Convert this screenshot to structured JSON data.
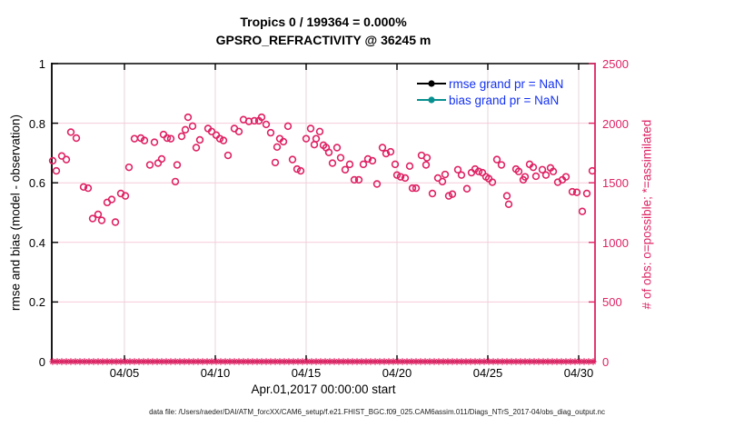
{
  "chart_data": {
    "type": "scatter",
    "title_line1": "Tropics 0 / 199364 = 0.000%",
    "title_line2": "GPSRO_REFRACTIVITY @ 36245 m",
    "xlabel": "Apr.01,2017 00:00:00 start",
    "footer": "data file: /Users/raeder/DAI/ATM_forcXX/CAM6_setup/f.e21.FHIST_BGC.f09_025.CAM6assim.011/Diags_NTrS_2017-04/obs_diag_output.nc",
    "left_axis": {
      "label": "rmse and bias (model - observation)",
      "range": [
        0,
        1
      ],
      "ticks": [
        {
          "v": 0,
          "label": "0"
        },
        {
          "v": 0.2,
          "label": "0.2"
        },
        {
          "v": 0.4,
          "label": "0.4"
        },
        {
          "v": 0.6,
          "label": "0.6"
        },
        {
          "v": 0.8,
          "label": "0.8"
        },
        {
          "v": 1,
          "label": "1"
        }
      ],
      "color": "#000000"
    },
    "right_axis": {
      "label": "# of obs: o=possible; *=assimilated",
      "range": [
        0,
        2500
      ],
      "ticks": [
        {
          "v": 0,
          "label": "0"
        },
        {
          "v": 500,
          "label": "500"
        },
        {
          "v": 1000,
          "label": "1000"
        },
        {
          "v": 1500,
          "label": "1500"
        },
        {
          "v": 2000,
          "label": "2000"
        },
        {
          "v": 2500,
          "label": "2500"
        }
      ],
      "color": "#de2264"
    },
    "x_axis": {
      "range_days": [
        0,
        29.9
      ],
      "ticks": [
        {
          "day": 4,
          "label": "04/05"
        },
        {
          "day": 9,
          "label": "04/10"
        },
        {
          "day": 14,
          "label": "04/15"
        },
        {
          "day": 19,
          "label": "04/20"
        },
        {
          "day": 24,
          "label": "04/25"
        },
        {
          "day": 29,
          "label": "04/30"
        }
      ]
    },
    "grid": {
      "h_values": [
        0.2,
        0.4,
        0.6,
        0.8
      ],
      "v_days": [
        4,
        9,
        14,
        19,
        24,
        29
      ],
      "h_color": "#f6cbd9",
      "v_color": "#e6d6da"
    },
    "legend": [
      {
        "label": "rmse grand pr = NaN",
        "color": "#000000"
      },
      {
        "label": "bias grand pr = NaN",
        "color": "#089090"
      }
    ],
    "legend_text_color": "#1432f0",
    "series": {
      "possible": {
        "name": "# of obs possible",
        "marker": "circle",
        "color": "#de2264",
        "axis": "right",
        "points": [
          [
            0.05,
            1685
          ],
          [
            0.25,
            1600
          ],
          [
            0.55,
            1725
          ],
          [
            0.8,
            1695
          ],
          [
            1.05,
            1925
          ],
          [
            1.35,
            1875
          ],
          [
            1.75,
            1465
          ],
          [
            2.0,
            1455
          ],
          [
            2.25,
            1200
          ],
          [
            2.55,
            1235
          ],
          [
            2.75,
            1185
          ],
          [
            3.05,
            1335
          ],
          [
            3.3,
            1360
          ],
          [
            3.5,
            1170
          ],
          [
            3.8,
            1410
          ],
          [
            4.05,
            1390
          ],
          [
            4.25,
            1630
          ],
          [
            4.55,
            1870
          ],
          [
            4.9,
            1875
          ],
          [
            5.1,
            1855
          ],
          [
            5.4,
            1650
          ],
          [
            5.65,
            1840
          ],
          [
            5.85,
            1665
          ],
          [
            6.05,
            1700
          ],
          [
            6.15,
            1905
          ],
          [
            6.35,
            1875
          ],
          [
            6.55,
            1870
          ],
          [
            6.8,
            1510
          ],
          [
            6.9,
            1650
          ],
          [
            7.15,
            1890
          ],
          [
            7.35,
            1945
          ],
          [
            7.5,
            2050
          ],
          [
            7.75,
            1975
          ],
          [
            7.95,
            1795
          ],
          [
            8.15,
            1860
          ],
          [
            8.6,
            1955
          ],
          [
            8.8,
            1930
          ],
          [
            9.05,
            1900
          ],
          [
            9.25,
            1870
          ],
          [
            9.45,
            1855
          ],
          [
            9.7,
            1730
          ],
          [
            10.05,
            1955
          ],
          [
            10.3,
            1930
          ],
          [
            10.55,
            2030
          ],
          [
            10.85,
            2015
          ],
          [
            11.15,
            2020
          ],
          [
            11.4,
            2020
          ],
          [
            11.55,
            2050
          ],
          [
            11.8,
            1990
          ],
          [
            12.05,
            1920
          ],
          [
            12.3,
            1670
          ],
          [
            12.4,
            1800
          ],
          [
            12.55,
            1870
          ],
          [
            12.75,
            1845
          ],
          [
            13.0,
            1975
          ],
          [
            13.25,
            1695
          ],
          [
            13.5,
            1615
          ],
          [
            13.7,
            1600
          ],
          [
            14.0,
            1870
          ],
          [
            14.25,
            1955
          ],
          [
            14.45,
            1820
          ],
          [
            14.55,
            1870
          ],
          [
            14.75,
            1930
          ],
          [
            14.95,
            1815
          ],
          [
            15.1,
            1795
          ],
          [
            15.25,
            1755
          ],
          [
            15.45,
            1665
          ],
          [
            15.7,
            1795
          ],
          [
            15.9,
            1710
          ],
          [
            16.15,
            1610
          ],
          [
            16.4,
            1655
          ],
          [
            16.65,
            1525
          ],
          [
            16.9,
            1525
          ],
          [
            17.15,
            1655
          ],
          [
            17.4,
            1700
          ],
          [
            17.65,
            1685
          ],
          [
            17.9,
            1490
          ],
          [
            18.2,
            1795
          ],
          [
            18.4,
            1745
          ],
          [
            18.65,
            1760
          ],
          [
            18.9,
            1655
          ],
          [
            19.0,
            1565
          ],
          [
            19.2,
            1550
          ],
          [
            19.45,
            1540
          ],
          [
            19.7,
            1640
          ],
          [
            19.85,
            1455
          ],
          [
            20.05,
            1455
          ],
          [
            20.35,
            1730
          ],
          [
            20.6,
            1650
          ],
          [
            20.65,
            1710
          ],
          [
            20.95,
            1410
          ],
          [
            21.25,
            1540
          ],
          [
            21.5,
            1510
          ],
          [
            21.65,
            1570
          ],
          [
            21.85,
            1390
          ],
          [
            22.05,
            1405
          ],
          [
            22.35,
            1610
          ],
          [
            22.55,
            1565
          ],
          [
            22.85,
            1450
          ],
          [
            23.1,
            1585
          ],
          [
            23.3,
            1615
          ],
          [
            23.5,
            1595
          ],
          [
            23.7,
            1585
          ],
          [
            23.9,
            1550
          ],
          [
            24.05,
            1535
          ],
          [
            24.25,
            1505
          ],
          [
            24.5,
            1695
          ],
          [
            24.75,
            1650
          ],
          [
            25.05,
            1390
          ],
          [
            25.15,
            1320
          ],
          [
            25.55,
            1615
          ],
          [
            25.7,
            1595
          ],
          [
            25.95,
            1525
          ],
          [
            26.05,
            1550
          ],
          [
            26.3,
            1655
          ],
          [
            26.5,
            1630
          ],
          [
            26.65,
            1555
          ],
          [
            27.0,
            1610
          ],
          [
            27.2,
            1565
          ],
          [
            27.45,
            1625
          ],
          [
            27.6,
            1595
          ],
          [
            27.85,
            1505
          ],
          [
            28.1,
            1525
          ],
          [
            28.3,
            1550
          ],
          [
            28.65,
            1425
          ],
          [
            28.9,
            1420
          ],
          [
            29.2,
            1260
          ],
          [
            29.45,
            1410
          ],
          [
            29.75,
            1600
          ]
        ]
      },
      "assimilated": {
        "name": "# of obs assimilated",
        "marker": "asterisk",
        "color": "#de2264",
        "axis": "right",
        "constant_y": 0,
        "x_start": 0.05,
        "x_end": 29.85,
        "x_step": 0.25
      }
    }
  }
}
